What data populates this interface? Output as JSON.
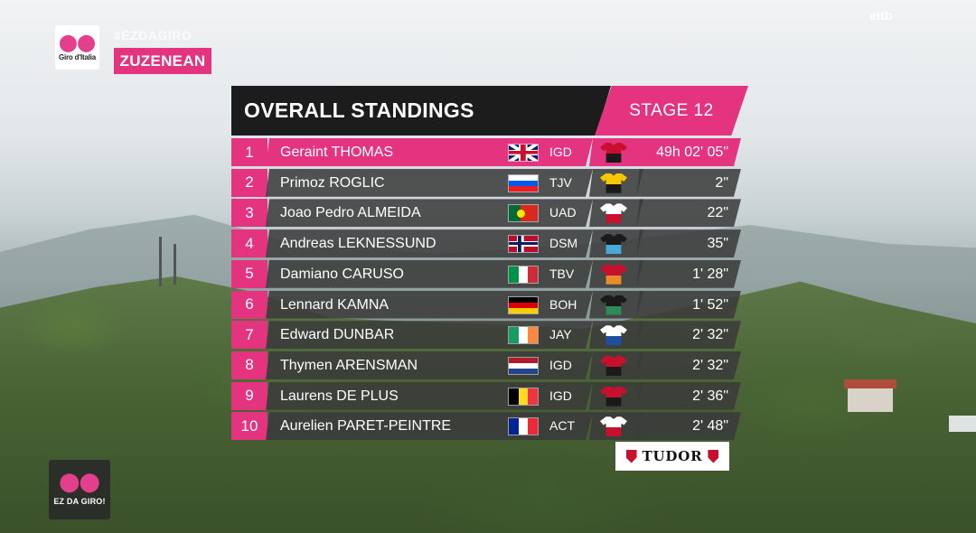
{
  "branding": {
    "logo_text": "Giro d'Italia",
    "hashtag": "#EZDAGIRO",
    "language_badge": "ZUZENEAN",
    "broadcaster": "eitb",
    "bottom_badge": "EZ DA GIRO!",
    "sponsor": "TUDOR"
  },
  "header": {
    "title": "OVERALL STANDINGS",
    "stage": "STAGE 12"
  },
  "standings": [
    {
      "rank": "1",
      "name": "Geraint THOMAS",
      "flag": "gbr",
      "team": "IGD",
      "time": "49h 02' 05\"",
      "jersey": [
        "#c8102e",
        "#1a1a1a"
      ]
    },
    {
      "rank": "2",
      "name": "Primoz ROGLIC",
      "flag": "svn",
      "team": "TJV",
      "time": "2\"",
      "jersey": [
        "#f6c700",
        "#1a1a1a"
      ]
    },
    {
      "rank": "3",
      "name": "Joao Pedro ALMEIDA",
      "flag": "prt",
      "team": "UAD",
      "time": "22\"",
      "jersey": [
        "#ffffff",
        "#c8102e"
      ]
    },
    {
      "rank": "4",
      "name": "Andreas LEKNESSUND",
      "flag": "nor",
      "team": "DSM",
      "time": "35\"",
      "jersey": [
        "#1a1a1a",
        "#49a8d8"
      ]
    },
    {
      "rank": "5",
      "name": "Damiano CARUSO",
      "flag": "ita",
      "team": "TBV",
      "time": "1' 28\"",
      "jersey": [
        "#c8102e",
        "#e98b2a"
      ]
    },
    {
      "rank": "6",
      "name": "Lennard KAMNA",
      "flag": "deu",
      "team": "BOH",
      "time": "1' 52\"",
      "jersey": [
        "#1a1a1a",
        "#2e8b57"
      ]
    },
    {
      "rank": "7",
      "name": "Edward DUNBAR",
      "flag": "irl",
      "team": "JAY",
      "time": "2' 32\"",
      "jersey": [
        "#ffffff",
        "#1f4fa3"
      ]
    },
    {
      "rank": "8",
      "name": "Thymen ARENSMAN",
      "flag": "nld",
      "team": "IGD",
      "time": "2' 32\"",
      "jersey": [
        "#c8102e",
        "#1a1a1a"
      ]
    },
    {
      "rank": "9",
      "name": "Laurens DE PLUS",
      "flag": "bel",
      "team": "IGD",
      "time": "2' 36\"",
      "jersey": [
        "#c8102e",
        "#1a1a1a"
      ]
    },
    {
      "rank": "10",
      "name": "Aurelien PARET-PEINTRE",
      "flag": "fra",
      "team": "ACT",
      "time": "2' 48\"",
      "jersey": [
        "#ffffff",
        "#c8102e"
      ]
    }
  ],
  "colors": {
    "accent_pink": "#e4347f",
    "row_dark": "#3a3a3a",
    "header_black": "#1c1c1c"
  },
  "icons": {
    "logo": "bicycle-icon",
    "sponsor": "shield-icon"
  }
}
